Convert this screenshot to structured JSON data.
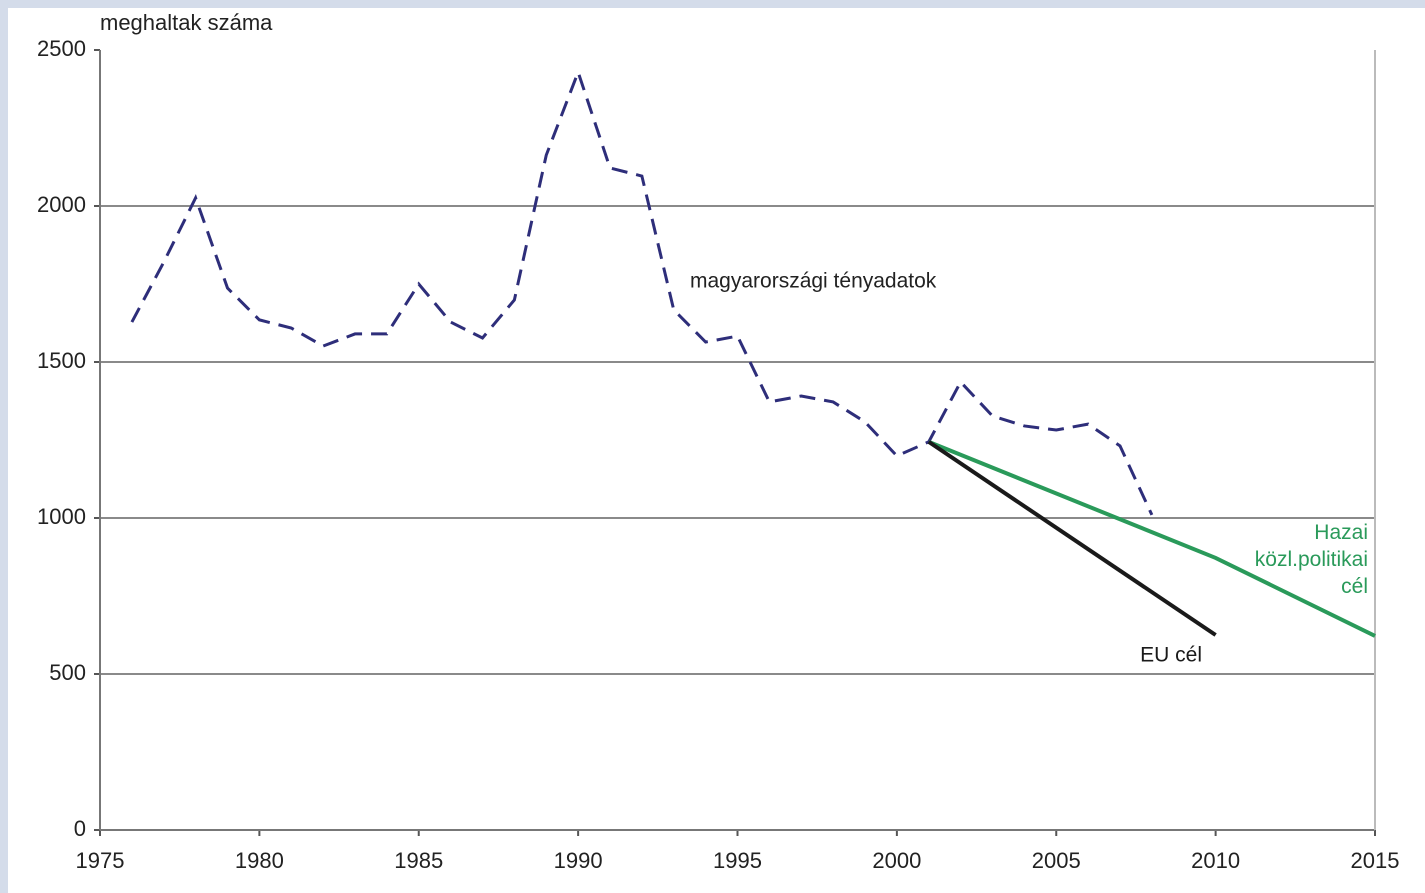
{
  "chart_data": {
    "type": "line",
    "y_label": "meghaltak száma",
    "xlim": [
      1975,
      2015
    ],
    "xticks": [
      1975,
      1980,
      1985,
      1990,
      1995,
      2000,
      2005,
      2010,
      2015
    ],
    "ylim": [
      0,
      2500
    ],
    "yticks": [
      0,
      500,
      1000,
      1500,
      2000,
      2500
    ],
    "grid": true,
    "series": [
      {
        "name": "magyarországi tényadatok",
        "color": "#2e2e7a",
        "dash": true,
        "x": [
          1976,
          1977,
          1978,
          1979,
          1980,
          1981,
          1982,
          1983,
          1984,
          1985,
          1986,
          1987,
          1988,
          1989,
          1990,
          1991,
          1992,
          1993,
          1994,
          1995,
          1996,
          1997,
          1998,
          1999,
          2000,
          2001,
          2002,
          2003,
          2004,
          2005,
          2006,
          2007,
          2008
        ],
        "values": [
          1628,
          1820,
          2026,
          1737,
          1635,
          1609,
          1551,
          1590,
          1590,
          1750,
          1628,
          1577,
          1699,
          2163,
          2429,
          2122,
          2096,
          1667,
          1564,
          1583,
          1372,
          1391,
          1372,
          1308,
          1199,
          1244,
          1436,
          1327,
          1295,
          1282,
          1301,
          1231,
          1010
        ]
      },
      {
        "name": "Hazai közl.politikai cél",
        "color": "#2a9a5a",
        "dash": false,
        "x": [
          2001,
          2010,
          2015
        ],
        "values": [
          1244,
          872,
          622
        ]
      },
      {
        "name": "EU cél",
        "color": "#1a1a1a",
        "dash": false,
        "x": [
          2001,
          2010
        ],
        "values": [
          1244,
          625
        ]
      }
    ]
  }
}
